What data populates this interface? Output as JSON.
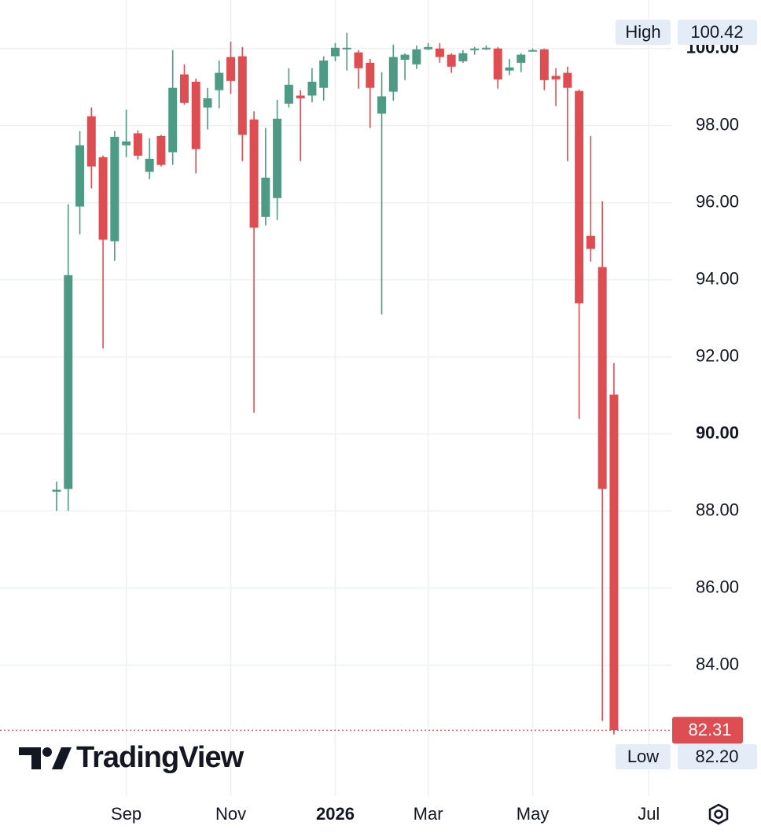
{
  "chart_data": {
    "type": "candlestick",
    "categories": [
      null,
      null,
      null,
      null,
      null,
      null,
      "Sep",
      null,
      null,
      null,
      null,
      null,
      null,
      null,
      null,
      "Nov",
      null,
      null,
      null,
      null,
      null,
      null,
      null,
      null,
      "2026",
      null,
      null,
      null,
      null,
      null,
      null,
      null,
      "Mar",
      null,
      null,
      null,
      null,
      null,
      null,
      null,
      null,
      "May",
      null,
      null,
      null,
      null,
      null,
      null,
      null,
      null,
      null,
      "Jul"
    ],
    "open": [
      88.5,
      88.57,
      95.9,
      98.24,
      97.18,
      95.0,
      97.49,
      97.8,
      96.8,
      97.73,
      97.31,
      99.33,
      99.14,
      98.47,
      98.92,
      99.78,
      99.8,
      98.16,
      95.63,
      96.12,
      98.57,
      98.78,
      98.78,
      98.98,
      99.8,
      100.0,
      99.9,
      99.63,
      98.31,
      98.88,
      99.71,
      99.59,
      99.98,
      100.0,
      99.84,
      99.67,
      99.96,
      100.0,
      100.0,
      99.43,
      99.63,
      99.94,
      99.98,
      99.29,
      99.37,
      98.9,
      95.14,
      94.33,
      91.02,
      null,
      null,
      null
    ],
    "high": [
      88.76,
      95.96,
      97.86,
      98.47,
      97.22,
      97.86,
      98.41,
      97.88,
      97.67,
      97.76,
      99.96,
      99.59,
      99.22,
      98.98,
      99.69,
      100.18,
      100.04,
      98.37,
      97.94,
      98.67,
      99.49,
      98.92,
      99.49,
      99.8,
      100.14,
      100.41,
      99.96,
      99.73,
      99.39,
      100.1,
      99.88,
      100.08,
      100.14,
      100.14,
      99.88,
      99.96,
      100.04,
      100.08,
      100.04,
      99.73,
      99.88,
      100.0,
      100.0,
      99.49,
      99.53,
      98.94,
      97.73,
      96.04,
      91.84,
      null,
      null,
      null
    ],
    "low": [
      88.0,
      88.0,
      95.18,
      96.37,
      92.22,
      94.49,
      97.18,
      97.12,
      96.61,
      96.94,
      96.98,
      98.55,
      96.76,
      97.9,
      98.45,
      98.82,
      97.08,
      90.55,
      95.41,
      95.55,
      98.47,
      97.08,
      98.61,
      98.65,
      99.67,
      99.43,
      98.96,
      97.94,
      93.1,
      98.65,
      99.18,
      99.47,
      99.96,
      99.63,
      99.37,
      99.63,
      99.84,
      99.96,
      98.96,
      99.31,
      99.39,
      99.94,
      98.92,
      98.51,
      97.08,
      90.39,
      94.47,
      82.55,
      82.2,
      null,
      null,
      null
    ],
    "close": [
      88.55,
      94.12,
      97.49,
      96.94,
      95.04,
      97.71,
      97.59,
      97.22,
      97.14,
      96.98,
      98.98,
      98.59,
      97.39,
      98.71,
      99.37,
      99.16,
      97.76,
      95.35,
      96.65,
      98.18,
      99.06,
      98.71,
      99.14,
      99.69,
      100.02,
      100.02,
      99.49,
      98.98,
      98.76,
      99.78,
      99.84,
      99.98,
      100.04,
      99.78,
      99.53,
      99.88,
      100.0,
      100.02,
      99.2,
      99.51,
      99.84,
      99.96,
      99.18,
      99.2,
      98.98,
      93.39,
      94.8,
      88.57,
      82.31,
      null,
      null,
      null
    ],
    "up_color": "#4d9b84",
    "down_color": "#de4d51",
    "ylim": [
      80.6,
      101.26
    ],
    "yticks": [
      {
        "value": 84,
        "label": "84.00"
      },
      {
        "value": 86,
        "label": "86.00"
      },
      {
        "value": 88,
        "label": "88.00"
      },
      {
        "value": 90,
        "label": "90.00",
        "bold": true
      },
      {
        "value": 92,
        "label": "92.00"
      },
      {
        "value": 94,
        "label": "94.00"
      },
      {
        "value": 96,
        "label": "96.00"
      },
      {
        "value": 98,
        "label": "98.00"
      },
      {
        "value": 100,
        "label": "100.00",
        "bold": true
      }
    ],
    "grid": true,
    "high_marker": {
      "label": "High",
      "value": 100.42,
      "value_label": "100.42"
    },
    "low_marker": {
      "label": "Low",
      "value": 82.2,
      "value_label": "82.20"
    },
    "last_price": {
      "value": 82.31,
      "value_label": "82.31",
      "color": "#de4d51"
    },
    "watermark": "TradingView"
  }
}
